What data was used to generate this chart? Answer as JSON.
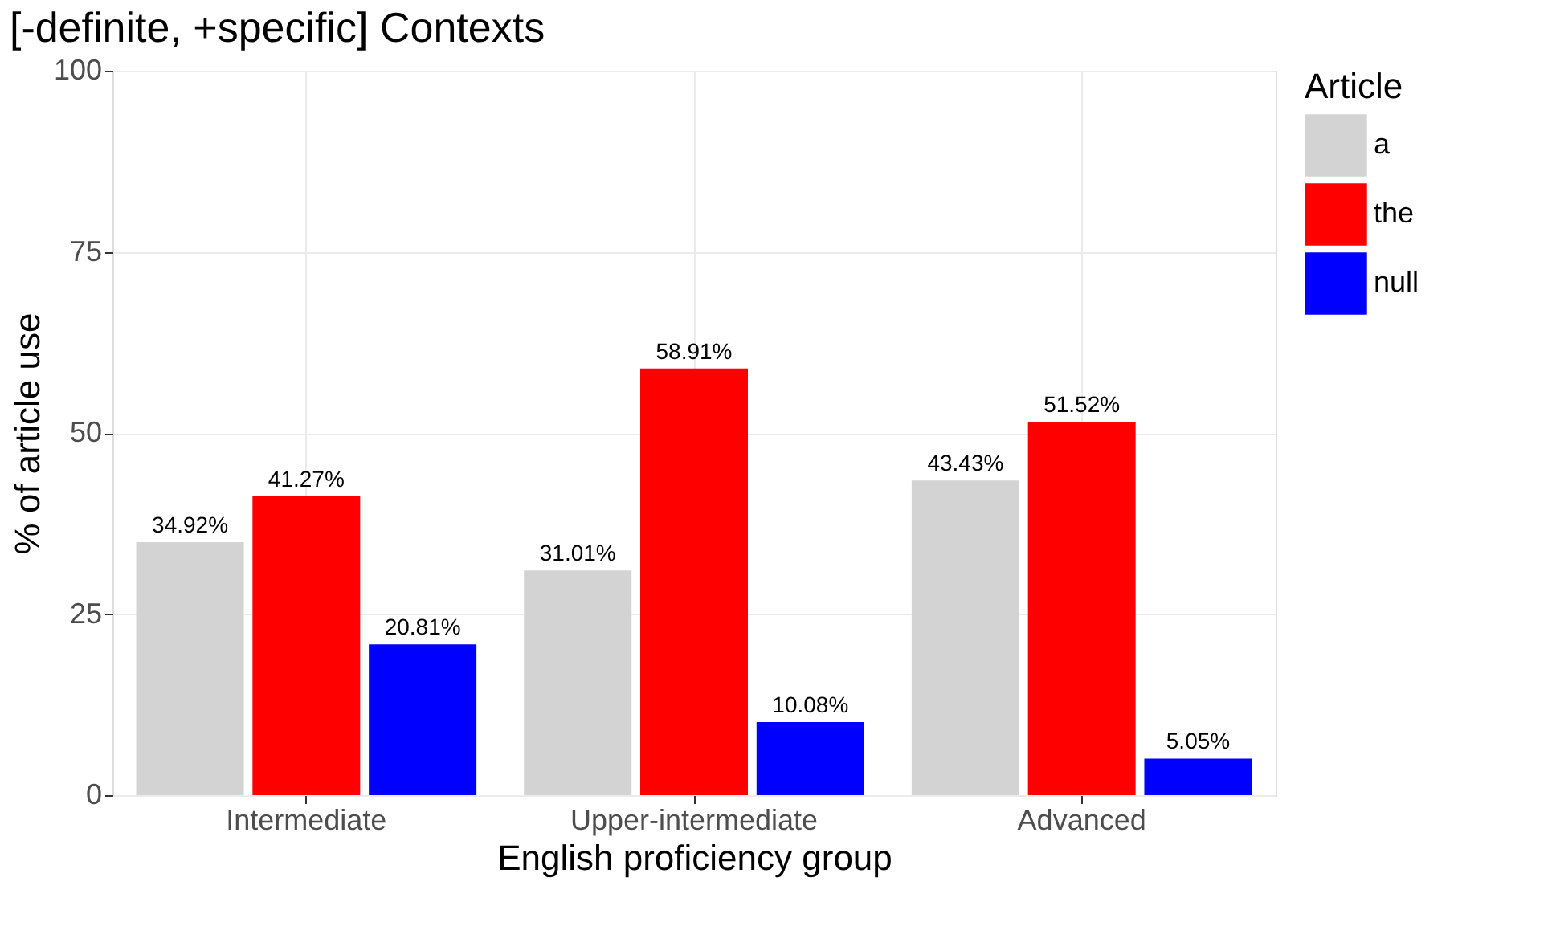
{
  "chart_data": {
    "type": "bar",
    "title": "[-definite, +specific] Contexts",
    "xlabel": "English proficiency group",
    "ylabel": "% of article use",
    "legend_title": "Article",
    "categories": [
      "Intermediate",
      "Upper-intermediate",
      "Advanced"
    ],
    "series": [
      {
        "name": "a",
        "color": "#d3d3d3",
        "values": [
          34.92,
          31.01,
          43.43
        ],
        "value_labels": [
          "34.92%",
          "31.01%",
          "43.43%"
        ]
      },
      {
        "name": "the",
        "color": "#ff0000",
        "values": [
          41.27,
          58.91,
          51.52
        ],
        "value_labels": [
          "41.27%",
          "58.91%",
          "51.52%"
        ]
      },
      {
        "name": "null",
        "color": "#0000ff",
        "values": [
          20.81,
          10.08,
          5.05
        ],
        "value_labels": [
          "20.81%",
          "10.08%",
          "5.05%"
        ]
      }
    ],
    "ylim": [
      0,
      100
    ],
    "yticks": [
      0,
      25,
      50,
      75,
      100
    ],
    "grid": true,
    "legend": "right"
  }
}
